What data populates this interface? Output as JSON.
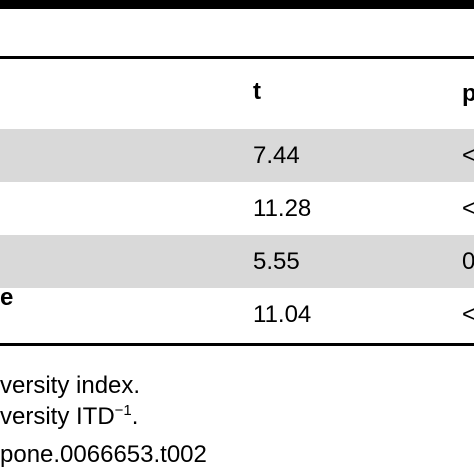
{
  "table": {
    "header": {
      "t_label": "t",
      "p_label_partial": "p"
    },
    "rows": [
      {
        "t": "7.44",
        "p_partial": "<",
        "shaded": true
      },
      {
        "t": "11.28",
        "p_partial": "<",
        "shaded": false
      },
      {
        "t": "5.55",
        "p_partial": "0",
        "shaded": true
      },
      {
        "t": "11.04",
        "p_partial": "<",
        "shaded": false,
        "stub_partial": "e"
      }
    ]
  },
  "footnotes": {
    "line1": "versity index.",
    "line2_prefix": "versity ITD",
    "line2_sup": "−1",
    "line2_suffix": ".",
    "line3": "pone.0066653.t002"
  }
}
